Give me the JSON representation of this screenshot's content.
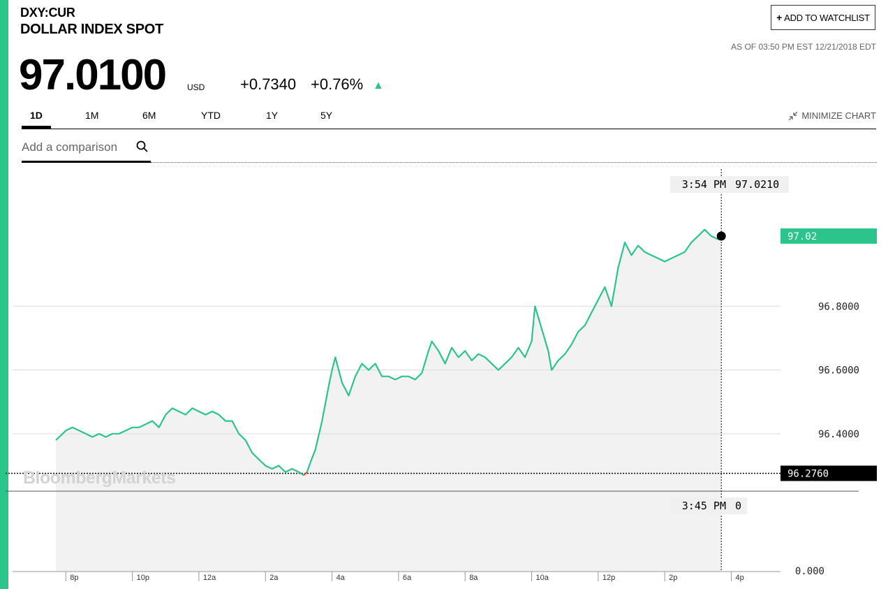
{
  "header": {
    "ticker": "DXY:CUR",
    "name": "DOLLAR INDEX SPOT",
    "watchlist_plus": "+",
    "watchlist_label": "ADD TO WATCHLIST",
    "as_of": "AS OF 03:50 PM EST 12/21/2018 EDT"
  },
  "quote": {
    "price": "97.0100",
    "currency": "USD",
    "change": "+0.7340",
    "change_pct": "+0.76%",
    "direction_icon": "up-triangle-icon"
  },
  "tabs": [
    {
      "label": "1D",
      "active": true
    },
    {
      "label": "1M",
      "active": false
    },
    {
      "label": "6M",
      "active": false
    },
    {
      "label": "YTD",
      "active": false
    },
    {
      "label": "1Y",
      "active": false
    },
    {
      "label": "5Y",
      "active": false
    }
  ],
  "minimize_label": "MINIMIZE CHART",
  "compare": {
    "placeholder": "Add a comparison"
  },
  "watermark": "BloombergMarkets",
  "colors": {
    "accent": "#2bc48a",
    "down": "#e8453c",
    "area": "#f2f2f2",
    "flag": "#000000"
  },
  "chart_data": {
    "type": "line",
    "price_panel": {
      "y_ticks": [
        "96.4000",
        "96.6000",
        "96.8000"
      ],
      "y_tick_values": [
        96.4,
        96.6,
        96.8
      ],
      "ylim": [
        96.22,
        97.23
      ],
      "x_ticks": [
        "8p",
        "10p",
        "12a",
        "2a",
        "4a",
        "6a",
        "8a",
        "10a",
        "12p",
        "2p",
        "4p"
      ],
      "x_tick_hours": [
        20,
        22,
        24,
        26,
        28,
        30,
        32,
        34,
        36,
        38,
        40
      ],
      "reference_line": {
        "value": 96.276,
        "label": "96.2760"
      },
      "last_price_flag": {
        "value": 97.02,
        "label": "97.02"
      },
      "hover": {
        "time": "3:54 PM",
        "value": "97.0210",
        "hour": 39.7
      },
      "series": [
        {
          "x": [
            19.7,
            19.8,
            20.0,
            20.2,
            20.4,
            20.6,
            20.8,
            21.0,
            21.2,
            21.4,
            21.6,
            21.8,
            22.0,
            22.2,
            22.4,
            22.6,
            22.8,
            23.0,
            23.2,
            23.4,
            23.6,
            23.8,
            24.0,
            24.2,
            24.4,
            24.6,
            24.8,
            25.0,
            25.2,
            25.4,
            25.6,
            25.8,
            26.0,
            26.2,
            26.4,
            26.6,
            26.8,
            27.0,
            27.15,
            27.25,
            27.35,
            27.5,
            27.7,
            27.9,
            28.0,
            28.1,
            28.3,
            28.5,
            28.7,
            28.9,
            29.1,
            29.3,
            29.5,
            29.7,
            29.9,
            30.1,
            30.3,
            30.5,
            30.7,
            30.9,
            31.0,
            31.2,
            31.4,
            31.6,
            31.8,
            32.0,
            32.2,
            32.4,
            32.6,
            32.8,
            33.0,
            33.2,
            33.4,
            33.6,
            33.8,
            34.0,
            34.1,
            34.3,
            34.5,
            34.6,
            34.8,
            35.0,
            35.2,
            35.4,
            35.6,
            35.8,
            36.0,
            36.2,
            36.4,
            36.6,
            36.8,
            37.0,
            37.2,
            37.4,
            37.6,
            37.8,
            38.0,
            38.2,
            38.4,
            38.6,
            38.8,
            39.0,
            39.2,
            39.4,
            39.6,
            39.7
          ],
          "values": [
            96.38,
            96.39,
            96.41,
            96.42,
            96.41,
            96.4,
            96.39,
            96.4,
            96.39,
            96.4,
            96.4,
            96.41,
            96.42,
            96.42,
            96.43,
            96.44,
            96.42,
            96.46,
            96.48,
            96.47,
            96.46,
            96.48,
            96.47,
            96.46,
            96.47,
            96.46,
            96.44,
            96.44,
            96.4,
            96.38,
            96.34,
            96.32,
            96.3,
            96.29,
            96.3,
            96.28,
            96.29,
            96.28,
            96.27,
            96.28,
            96.31,
            96.35,
            96.44,
            96.55,
            96.6,
            96.64,
            96.56,
            96.52,
            96.58,
            96.62,
            96.6,
            96.62,
            96.58,
            96.58,
            96.57,
            96.58,
            96.58,
            96.57,
            96.59,
            96.66,
            96.69,
            96.66,
            96.62,
            96.67,
            96.64,
            96.66,
            96.63,
            96.65,
            96.64,
            96.62,
            96.6,
            96.62,
            96.64,
            96.67,
            96.64,
            96.69,
            96.8,
            96.73,
            96.66,
            96.6,
            96.63,
            96.65,
            96.68,
            96.72,
            96.74,
            96.78,
            96.82,
            96.86,
            96.8,
            96.92,
            97.0,
            96.96,
            96.99,
            96.97,
            96.96,
            96.95,
            96.94,
            96.95,
            96.96,
            96.97,
            97.0,
            97.02,
            97.04,
            97.02,
            97.01,
            97.02
          ]
        }
      ]
    },
    "volume_panel": {
      "y_ticks": [
        "0.000"
      ],
      "hover": {
        "time": "3:45 PM",
        "value": "0"
      }
    }
  }
}
